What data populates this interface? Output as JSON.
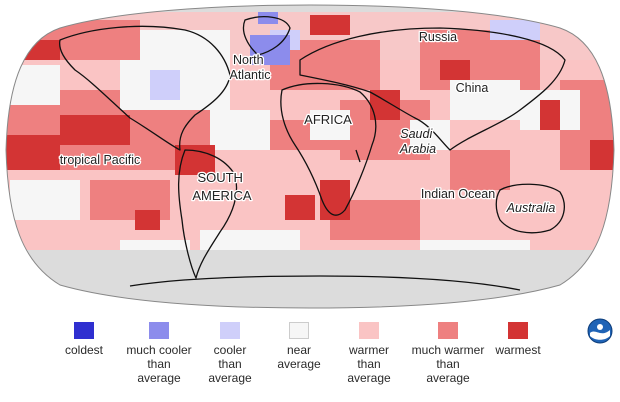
{
  "map": {
    "labels": {
      "north_atlantic": "North\nAtlantic",
      "russia": "Russia",
      "china": "China",
      "africa": "AFRICA",
      "saudi_arabia": "Saudi\nArabia",
      "tropical_pacific": "tropical Pacific",
      "south_america": "SOUTH\nAMERICA",
      "indian_ocean": "Indian Ocean",
      "australia": "Australia"
    }
  },
  "legend": {
    "items": [
      {
        "label": "coldest",
        "color": "#2f2fd0"
      },
      {
        "label": "much cooler\nthan\naverage",
        "color": "#8c8cec"
      },
      {
        "label": "cooler\nthan\naverage",
        "color": "#cfcffa"
      },
      {
        "label": "near\naverage",
        "color": "#f6f6f6"
      },
      {
        "label": "warmer\nthan\naverage",
        "color": "#fac4c4"
      },
      {
        "label": "much warmer\nthan\naverage",
        "color": "#ee8080"
      },
      {
        "label": "warmest",
        "color": "#d33434"
      }
    ]
  },
  "logo": {
    "name": "noaa-logo-icon",
    "text": "NOAA"
  }
}
